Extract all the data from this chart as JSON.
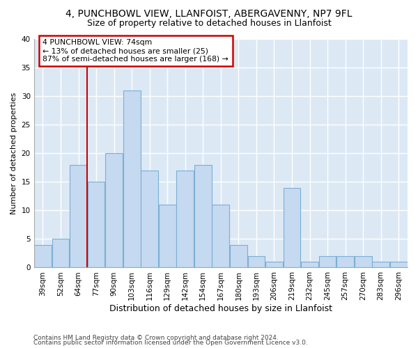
{
  "title1": "4, PUNCHBOWL VIEW, LLANFOIST, ABERGAVENNY, NP7 9FL",
  "title2": "Size of property relative to detached houses in Llanfoist",
  "xlabel": "Distribution of detached houses by size in Llanfoist",
  "ylabel": "Number of detached properties",
  "categories": [
    "39sqm",
    "52sqm",
    "64sqm",
    "77sqm",
    "90sqm",
    "103sqm",
    "116sqm",
    "129sqm",
    "142sqm",
    "154sqm",
    "167sqm",
    "180sqm",
    "193sqm",
    "206sqm",
    "219sqm",
    "232sqm",
    "245sqm",
    "257sqm",
    "270sqm",
    "283sqm",
    "296sqm"
  ],
  "values": [
    4,
    5,
    18,
    15,
    20,
    31,
    17,
    11,
    17,
    18,
    11,
    4,
    2,
    1,
    14,
    1,
    2,
    2,
    2,
    1,
    1
  ],
  "bar_color": "#c5d9f0",
  "bar_edge_color": "#7bafd4",
  "background_color": "#dce9f5",
  "grid_color": "#ffffff",
  "annotation_box_text": "4 PUNCHBOWL VIEW: 74sqm\n← 13% of detached houses are smaller (25)\n87% of semi-detached houses are larger (168) →",
  "annotation_box_color": "#ffffff",
  "annotation_box_edge_color": "#cc0000",
  "vline_x": 2.5,
  "vline_color": "#cc0000",
  "ylim": [
    0,
    40
  ],
  "yticks": [
    0,
    5,
    10,
    15,
    20,
    25,
    30,
    35,
    40
  ],
  "footer1": "Contains HM Land Registry data © Crown copyright and database right 2024.",
  "footer2": "Contains public sector information licensed under the Open Government Licence v3.0.",
  "title1_fontsize": 10,
  "title2_fontsize": 9,
  "xlabel_fontsize": 9,
  "ylabel_fontsize": 8,
  "tick_fontsize": 7.5,
  "footer_fontsize": 6.5
}
